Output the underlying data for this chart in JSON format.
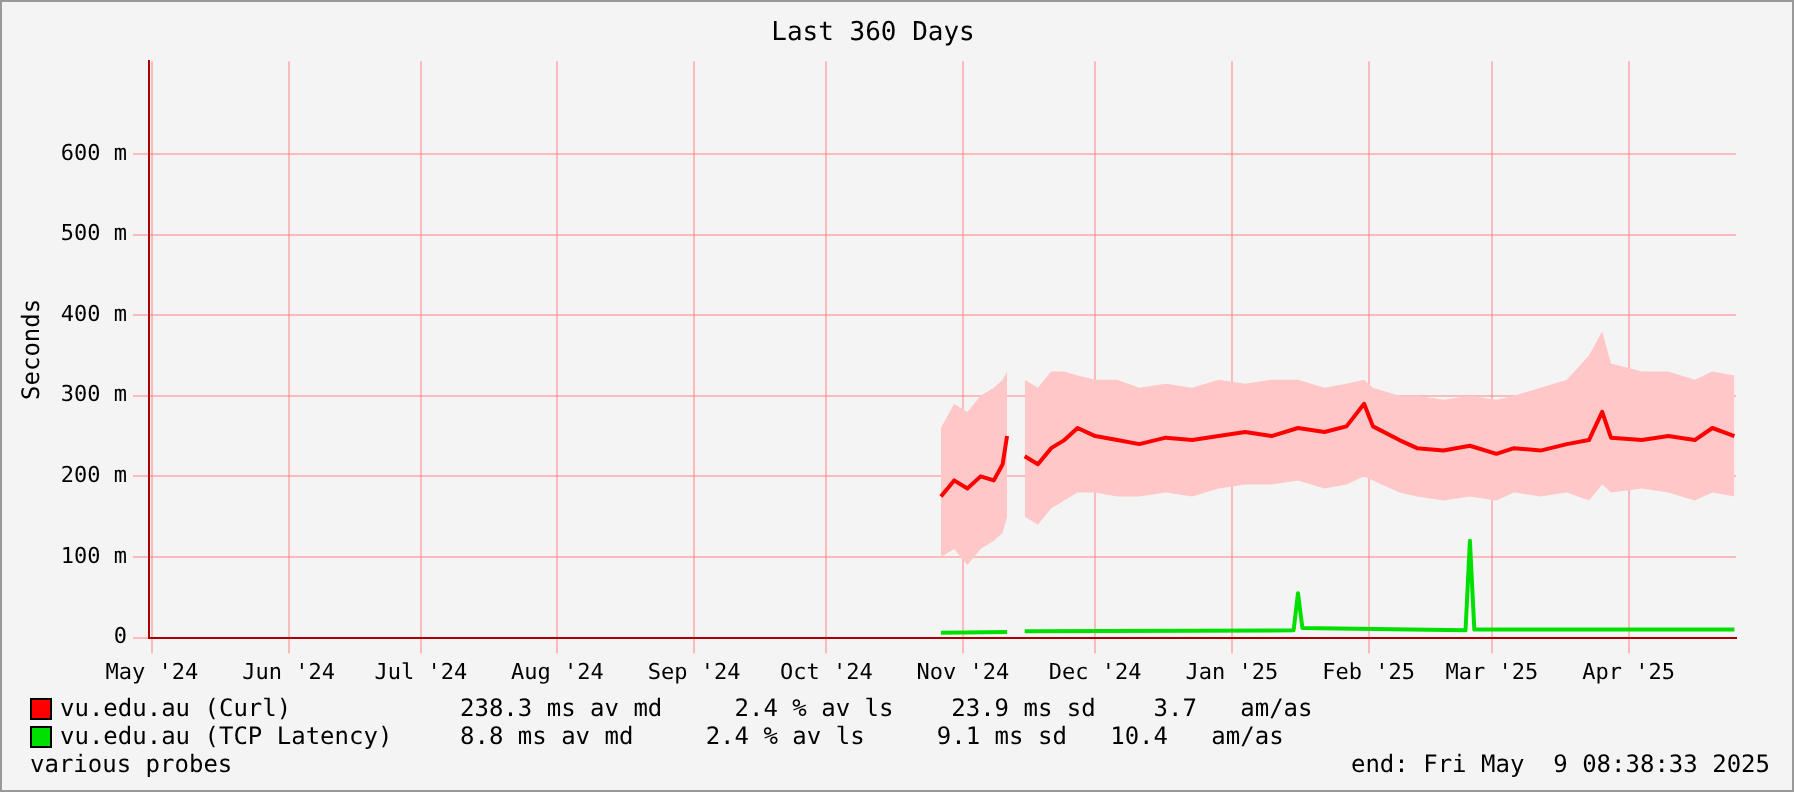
{
  "chart_data": {
    "type": "line",
    "title": "Last 360 Days",
    "ylabel": "Seconds",
    "x": [
      "2024-11-10",
      "2024-11-13",
      "2024-11-16",
      "2024-11-19",
      "2024-11-22",
      "2024-11-24",
      "2024-11-25",
      "2024-11-26",
      "2024-11-29",
      "2024-12-02",
      "2024-12-05",
      "2024-12-08",
      "2024-12-11",
      "2024-12-15",
      "2024-12-20",
      "2024-12-25",
      "2024-12-31",
      "2025-01-06",
      "2025-01-12",
      "2025-01-18",
      "2025-01-24",
      "2025-01-30",
      "2025-02-05",
      "2025-02-10",
      "2025-02-14",
      "2025-02-16",
      "2025-02-22",
      "2025-02-26",
      "2025-03-04",
      "2025-03-10",
      "2025-03-16",
      "2025-03-20",
      "2025-03-26",
      "2025-04-01",
      "2025-04-06",
      "2025-04-09",
      "2025-04-11",
      "2025-04-18",
      "2025-04-24",
      "2025-04-30",
      "2025-05-04",
      "2025-05-09"
    ],
    "series": [
      {
        "name": "vu.edu.au (Curl)",
        "color": "#ff0000",
        "values": [
          175,
          195,
          185,
          200,
          195,
          215,
          250,
          null,
          225,
          215,
          235,
          245,
          260,
          250,
          245,
          240,
          248,
          245,
          250,
          255,
          250,
          260,
          255,
          262,
          290,
          262,
          245,
          235,
          232,
          238,
          228,
          235,
          232,
          240,
          245,
          280,
          248,
          245,
          250,
          245,
          260,
          250
        ],
        "lower": [
          100,
          110,
          90,
          110,
          120,
          130,
          150,
          null,
          150,
          140,
          160,
          170,
          180,
          180,
          175,
          175,
          180,
          175,
          185,
          190,
          190,
          195,
          185,
          190,
          200,
          195,
          180,
          175,
          170,
          175,
          170,
          180,
          175,
          180,
          170,
          190,
          180,
          185,
          180,
          170,
          180,
          175
        ],
        "upper": [
          260,
          290,
          280,
          300,
          310,
          320,
          330,
          null,
          320,
          310,
          330,
          330,
          325,
          320,
          320,
          310,
          315,
          310,
          320,
          315,
          320,
          320,
          310,
          315,
          320,
          310,
          300,
          300,
          295,
          300,
          295,
          300,
          310,
          320,
          350,
          380,
          340,
          330,
          330,
          320,
          330,
          325
        ]
      },
      {
        "name": "vu.edu.au (TCP Latency)",
        "color": "#00e000",
        "x": [
          "2024-11-10",
          "2024-11-25",
          "2024-11-26",
          "2024-11-29",
          "2025-01-29",
          "2025-01-30",
          "2025-01-31",
          "2025-03-09",
          "2025-03-10",
          "2025-03-11",
          "2025-05-09"
        ],
        "values": [
          6,
          7,
          null,
          8,
          9,
          55,
          12,
          9,
          120,
          10,
          10
        ]
      }
    ],
    "xlim": [
      "2024-05-14T08:38",
      "2025-05-09T08:38"
    ],
    "xticks": [
      {
        "value": "2024-05-15",
        "label": "May '24"
      },
      {
        "value": "2024-06-15",
        "label": "Jun '24"
      },
      {
        "value": "2024-07-15",
        "label": "Jul '24"
      },
      {
        "value": "2024-08-15",
        "label": "Aug '24"
      },
      {
        "value": "2024-09-15",
        "label": "Sep '24"
      },
      {
        "value": "2024-10-15",
        "label": "Oct '24"
      },
      {
        "value": "2024-11-15",
        "label": "Nov '24"
      },
      {
        "value": "2024-12-15",
        "label": "Dec '24"
      },
      {
        "value": "2025-01-15",
        "label": "Jan '25"
      },
      {
        "value": "2025-02-15",
        "label": "Feb '25"
      },
      {
        "value": "2025-03-15",
        "label": "Mar '25"
      },
      {
        "value": "2025-04-15",
        "label": "Apr '25"
      }
    ],
    "ylim": [
      0,
      715
    ],
    "yticks": [
      0,
      {
        "value": 100,
        "label": "100 m"
      },
      {
        "value": 200,
        "label": "200 m"
      },
      {
        "value": 300,
        "label": "300 m"
      },
      {
        "value": 400,
        "label": "400 m"
      },
      {
        "value": 500,
        "label": "500 m"
      },
      {
        "value": 600,
        "label": "600 m"
      }
    ],
    "grid": true,
    "legend": "bottom",
    "marker": "none",
    "line_style": "solid",
    "annotations": [
      "238.3 ms av md     2.4 % av ls    23.9 ms sd    3.7   am/as",
      "8.8 ms av md     2.4 % av ls     9.1 ms sd   10.4   am/as",
      "various probes",
      "end: Fri May  9 08:38:33 2025"
    ]
  }
}
